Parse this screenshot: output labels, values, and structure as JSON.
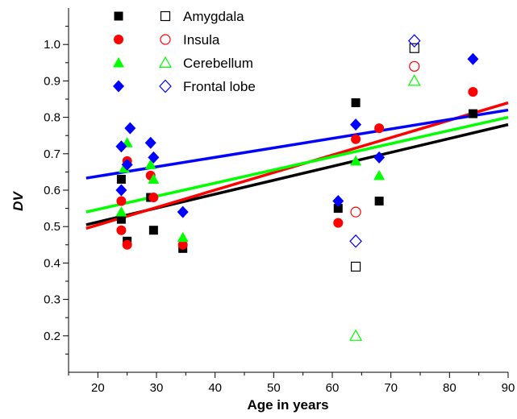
{
  "chart_data": {
    "type": "scatter",
    "title": "",
    "xlabel": "Age in years",
    "ylabel": "DV",
    "xlim": [
      15,
      90
    ],
    "ylim": [
      0.1,
      1.1
    ],
    "x_ticks": [
      20,
      30,
      40,
      50,
      60,
      70,
      80,
      90
    ],
    "y_ticks": [
      0.2,
      0.3,
      0.4,
      0.5,
      0.6,
      0.7,
      0.8,
      0.9,
      1.0
    ],
    "x_tick_labels": [
      "20",
      "30",
      "40",
      "50",
      "60",
      "70",
      "80",
      "90"
    ],
    "y_tick_labels": [
      "0.2",
      "0.3",
      "0.4",
      "0.5",
      "0.6",
      "0.7",
      "0.8",
      "0.9",
      "1.0"
    ],
    "grid": false,
    "legend_position": "top-left",
    "series": [
      {
        "name": "Amygdala",
        "color": "#000000",
        "marker": "square",
        "x": [
          24,
          24,
          25,
          29,
          29.5,
          34.5,
          61,
          64,
          68,
          84
        ],
        "y": [
          0.63,
          0.52,
          0.46,
          0.58,
          0.49,
          0.44,
          0.55,
          0.84,
          0.57,
          0.81
        ],
        "open_points": {
          "x": [
            64,
            74
          ],
          "y": [
            0.39,
            0.99
          ]
        },
        "fit": {
          "x": [
            18,
            90
          ],
          "y": [
            0.505,
            0.78
          ]
        }
      },
      {
        "name": "Insula",
        "color": "#ff0000",
        "marker": "circle",
        "x": [
          24,
          24,
          25,
          25,
          29,
          29.5,
          34.5,
          61,
          64,
          68,
          84
        ],
        "y": [
          0.57,
          0.49,
          0.45,
          0.68,
          0.64,
          0.58,
          0.45,
          0.51,
          0.74,
          0.77,
          0.87
        ],
        "open_points": {
          "x": [
            64,
            74
          ],
          "y": [
            0.54,
            0.94
          ]
        },
        "fit": {
          "x": [
            18,
            90
          ],
          "y": [
            0.495,
            0.84
          ]
        }
      },
      {
        "name": "Cerebellum",
        "color": "#00ff00",
        "marker": "triangle",
        "x": [
          24,
          24.5,
          25,
          29,
          29.5,
          34.5,
          64,
          68
        ],
        "y": [
          0.54,
          0.66,
          0.73,
          0.67,
          0.63,
          0.47,
          0.68,
          0.64
        ],
        "open_points": {
          "x": [
            64,
            74
          ],
          "y": [
            0.2,
            0.9
          ]
        },
        "fit": {
          "x": [
            18,
            90
          ],
          "y": [
            0.54,
            0.8
          ]
        }
      },
      {
        "name": "Frontal lobe",
        "color": "#0000ff",
        "marker": "diamond",
        "x": [
          24,
          24,
          25,
          25.5,
          29,
          29.5,
          34.5,
          61,
          64,
          68,
          84
        ],
        "y": [
          0.72,
          0.6,
          0.67,
          0.77,
          0.73,
          0.69,
          0.54,
          0.57,
          0.78,
          0.69,
          0.96
        ],
        "open_points": {
          "x": [
            64,
            74
          ],
          "y": [
            0.46,
            1.01
          ]
        },
        "fit": {
          "x": [
            18,
            90
          ],
          "y": [
            0.633,
            0.82
          ]
        }
      }
    ]
  }
}
